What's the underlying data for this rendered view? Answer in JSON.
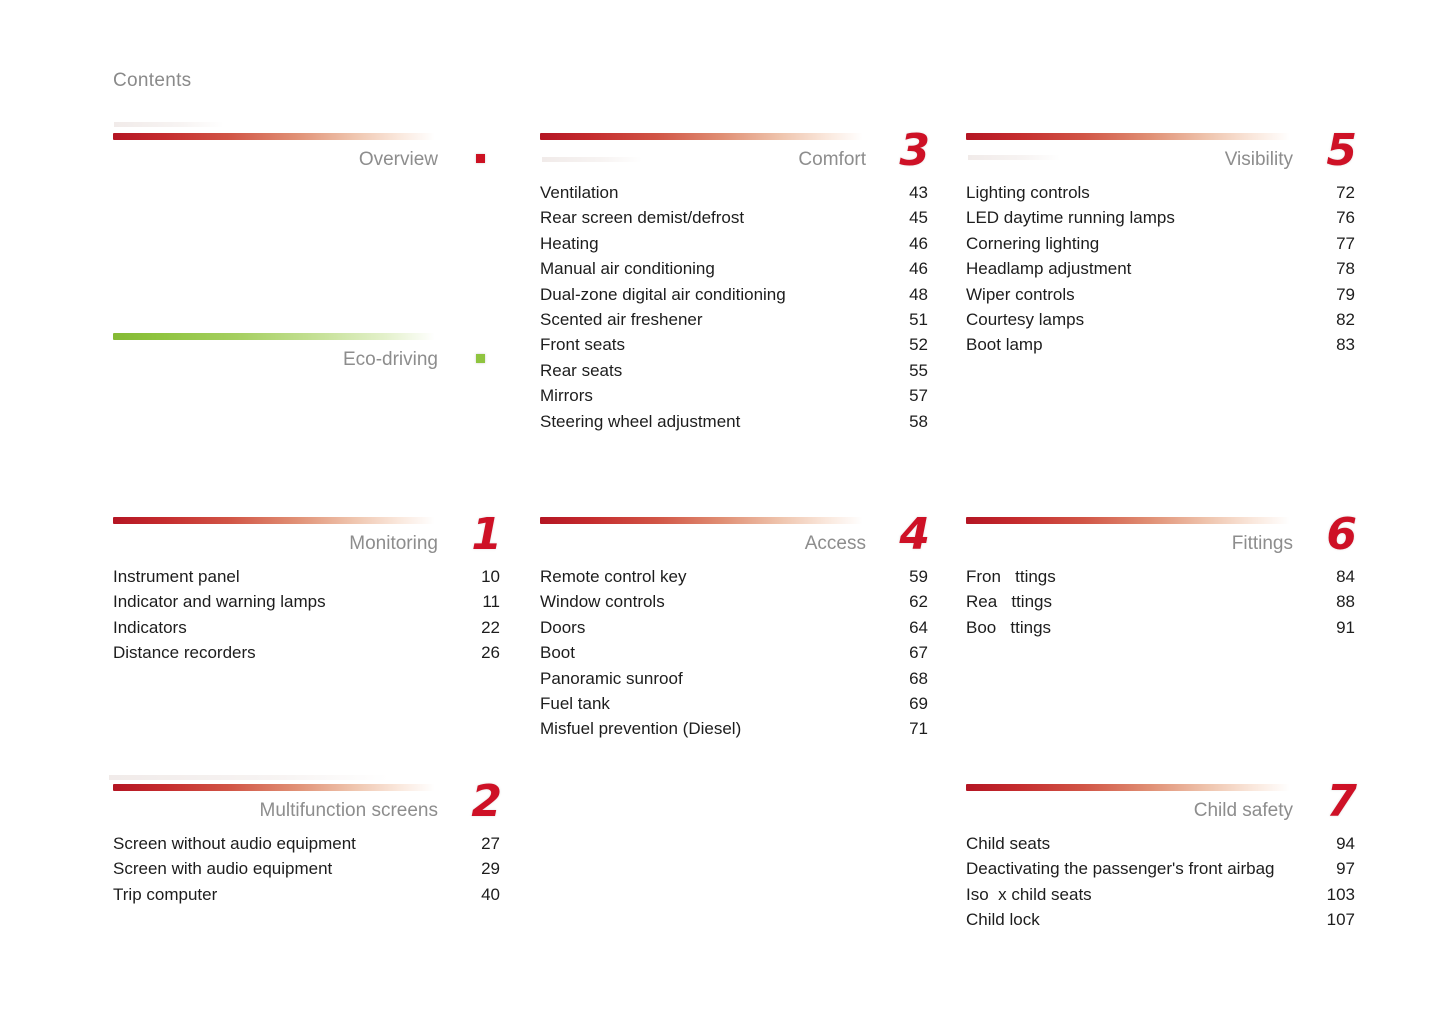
{
  "page": {
    "header": "Contents",
    "accent_red": "#ce1126",
    "accent_green": "#8fc43f",
    "title_gray": "#8d8d8d",
    "text_color": "#1d1d1d"
  },
  "sections": [
    {
      "id": "overview",
      "title": "Overview",
      "bar": "red",
      "marker": "red-square",
      "items": []
    },
    {
      "id": "eco_driving",
      "title": "Eco-driving",
      "bar": "green",
      "marker": "green-square",
      "items": []
    },
    {
      "id": "comfort",
      "title": "Comfort",
      "number": "3",
      "bar": "red",
      "items": [
        {
          "label": "Ventilation",
          "page": "43"
        },
        {
          "label": "Rear screen demist/defrost",
          "page": "45"
        },
        {
          "label": "Heating",
          "page": "46"
        },
        {
          "label": "Manual air conditioning",
          "page": "46"
        },
        {
          "label": "Dual-zone digital air conditioning",
          "page": "48"
        },
        {
          "label": "Scented air freshener",
          "page": "51"
        },
        {
          "label": "Front seats",
          "page": "52"
        },
        {
          "label": "Rear seats",
          "page": "55"
        },
        {
          "label": "Mirrors",
          "page": "57"
        },
        {
          "label": "Steering wheel adjustment",
          "page": "58"
        }
      ]
    },
    {
      "id": "visibility",
      "title": "Visibility",
      "number": "5",
      "bar": "red",
      "items": [
        {
          "label": "Lighting controls",
          "page": "72"
        },
        {
          "label": "LED daytime running lamps",
          "page": "76"
        },
        {
          "label": "Cornering lighting",
          "page": "77"
        },
        {
          "label": "Headlamp adjustment",
          "page": "78"
        },
        {
          "label": "Wiper controls",
          "page": "79"
        },
        {
          "label": "Courtesy lamps",
          "page": "82"
        },
        {
          "label": "Boot lamp",
          "page": "83"
        }
      ]
    },
    {
      "id": "monitoring",
      "title": "Monitoring",
      "number": "1",
      "bar": "red",
      "items": [
        {
          "label": "Instrument panel",
          "page": "10"
        },
        {
          "label": "Indicator and warning lamps",
          "page": "11"
        },
        {
          "label": "Indicators",
          "page": "22"
        },
        {
          "label": "Distance recorders",
          "page": "26"
        }
      ]
    },
    {
      "id": "access",
      "title": "Access",
      "number": "4",
      "bar": "red",
      "items": [
        {
          "label": "Remote control key",
          "page": "59"
        },
        {
          "label": "Window controls",
          "page": "62"
        },
        {
          "label": "Doors",
          "page": "64"
        },
        {
          "label": "Boot",
          "page": "67"
        },
        {
          "label": "Panoramic sunroof",
          "page": "68"
        },
        {
          "label": "Fuel tank",
          "page": "69"
        },
        {
          "label": "Misfuel prevention (Diesel)",
          "page": "71"
        }
      ]
    },
    {
      "id": "fittings",
      "title": "Fittings",
      "number": "6",
      "bar": "red",
      "items": [
        {
          "label": "Fron   ttings",
          "page": "84"
        },
        {
          "label": "Rea   ttings",
          "page": "88"
        },
        {
          "label": "Boo   ttings",
          "page": "91"
        }
      ]
    },
    {
      "id": "multifunction_screens",
      "title": "Multifunction screens",
      "number": "2",
      "bar": "red",
      "items": [
        {
          "label": "Screen without audio equipment",
          "page": "27"
        },
        {
          "label": "Screen with audio equipment",
          "page": "29"
        },
        {
          "label": "Trip computer",
          "page": "40"
        }
      ]
    },
    {
      "id": "child_safety",
      "title": "Child safety",
      "number": "7",
      "bar": "red",
      "items": [
        {
          "label": "Child seats",
          "page": "94"
        },
        {
          "label": "Deactivating the passenger's front airbag",
          "page": "97"
        },
        {
          "label": "Iso  x child seats",
          "page": "103"
        },
        {
          "label": "Child lock",
          "page": "107"
        }
      ]
    }
  ]
}
